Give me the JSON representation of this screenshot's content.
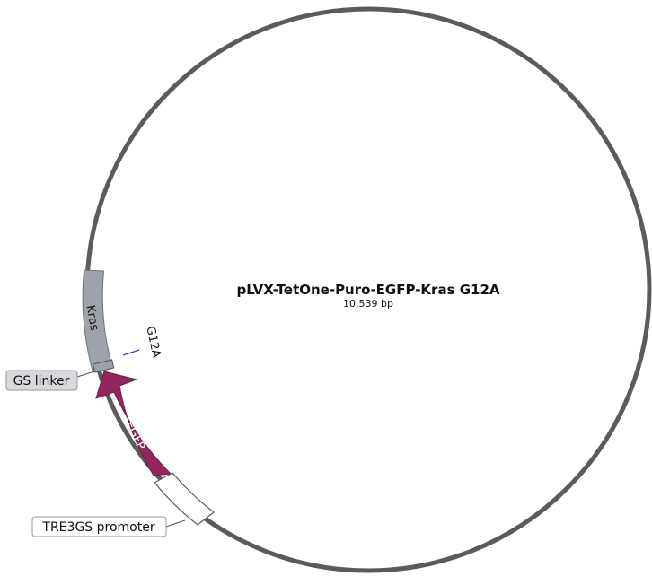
{
  "plasmid": {
    "name": "pLVX-TetOne-Puro-EGFP-Kras G12A",
    "length": "10,539 bp",
    "backbone_color": "#5b5b5b"
  },
  "features": {
    "kras": {
      "label": "Kras",
      "color": "#9ea3ab"
    },
    "gs_linker": {
      "label": "GS linker",
      "color": "#9ea3ab"
    },
    "egfp": {
      "label": "EGFP",
      "color": "#93275d"
    },
    "tre3gs": {
      "label": "TRE3GS promoter",
      "color": "#ffffff"
    }
  },
  "sites": {
    "g12a": {
      "label": "G12A",
      "color": "#3b3bd6"
    }
  }
}
